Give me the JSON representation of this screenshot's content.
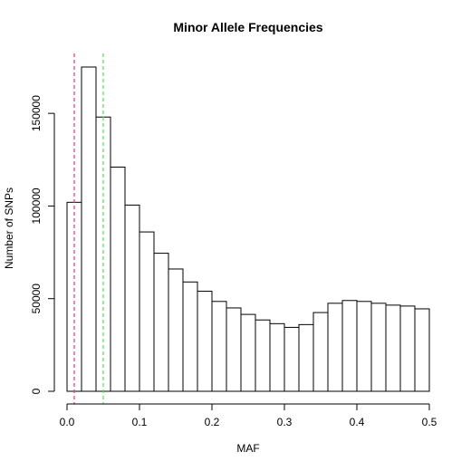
{
  "chart_data": {
    "type": "bar",
    "title": "Minor Allele Frequencies",
    "xlabel": "MAF",
    "ylabel": "Number of SNPs",
    "bin_width": 0.02,
    "bin_starts": [
      0.0,
      0.02,
      0.04,
      0.06,
      0.08,
      0.1,
      0.12,
      0.14,
      0.16,
      0.18,
      0.2,
      0.22,
      0.24,
      0.26,
      0.28,
      0.3,
      0.32,
      0.34,
      0.36,
      0.38,
      0.4,
      0.42,
      0.44,
      0.46,
      0.48
    ],
    "values": [
      102000,
      175000,
      148000,
      121000,
      100500,
      86000,
      74500,
      66000,
      59000,
      54000,
      48500,
      45000,
      41500,
      38500,
      36500,
      34500,
      36000,
      42500,
      47500,
      49000,
      48500,
      47500,
      46500,
      46000,
      44500
    ],
    "xlim": [
      0,
      0.5
    ],
    "ylim": [
      0,
      175000
    ],
    "xticks": [
      0.0,
      0.1,
      0.2,
      0.3,
      0.4,
      0.5
    ],
    "xtick_labels": [
      "0.0",
      "0.1",
      "0.2",
      "0.3",
      "0.4",
      "0.5"
    ],
    "yticks": [
      0,
      50000,
      100000,
      150000
    ],
    "ytick_labels": [
      "0",
      "50000",
      "100000",
      "150000"
    ],
    "vlines": [
      {
        "x": 0.01,
        "color": "#e8356a",
        "style": "dashed"
      },
      {
        "x": 0.05,
        "color": "#4ee44e",
        "style": "dashed"
      }
    ],
    "bar_fill": "#ffffff",
    "bar_stroke": "#000000",
    "grid": false,
    "legend": "none"
  }
}
